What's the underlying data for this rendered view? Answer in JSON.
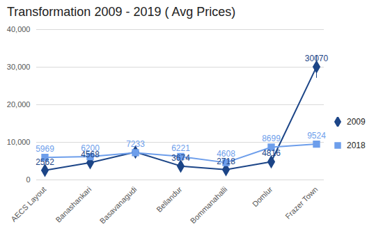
{
  "chart_data": {
    "type": "line",
    "title": "Transformation 2009 - 2019 ( Avg Prices)",
    "categories": [
      "AECS Layout",
      "Banashankari",
      "Basavanagudi",
      "Bellandur",
      "Bommanahalli",
      "Domlur",
      "Frazer Town"
    ],
    "series": [
      {
        "name": "2009",
        "color": "#1c4587",
        "marker": "diamond",
        "values": [
          2562,
          4568,
          7400,
          3674,
          2718,
          4816,
          30070
        ],
        "value_labels": [
          "2562",
          "4568",
          null,
          "3674",
          "2718",
          "4816",
          "30070"
        ],
        "error": [
          null,
          null,
          null,
          null,
          null,
          null,
          3000
        ]
      },
      {
        "name": "2018",
        "color": "#6d9eeb",
        "marker": "square",
        "values": [
          5969,
          6200,
          7233,
          6221,
          4608,
          8699,
          9524
        ],
        "error": [
          500,
          null,
          null,
          null,
          null,
          null,
          null
        ]
      }
    ],
    "ylim": [
      0,
      40000
    ],
    "yticks": [
      0,
      10000,
      20000,
      30000,
      40000
    ],
    "grid": true,
    "legend": "right",
    "data_labels": true
  }
}
